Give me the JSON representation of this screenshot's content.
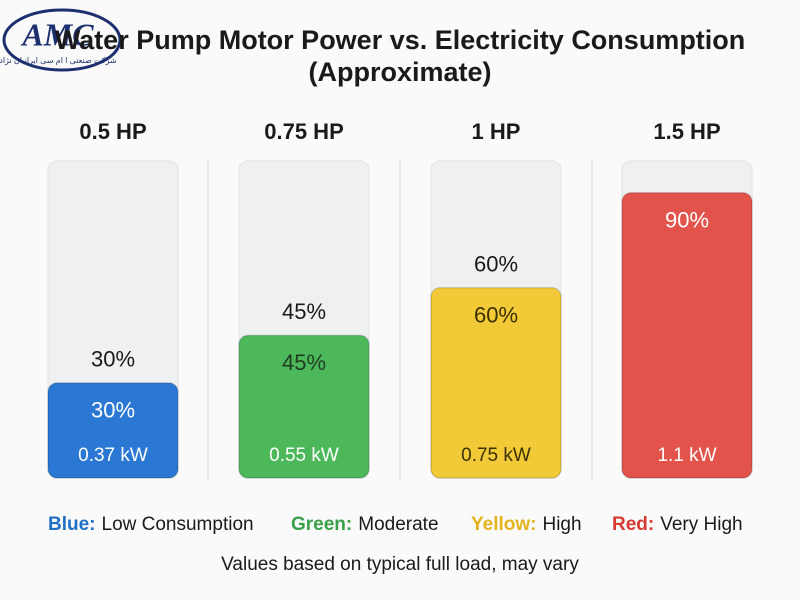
{
  "logo": {
    "name": "AMC",
    "subtitle": "شرکت صنعتی ا ام سی ایرانیان نژاد"
  },
  "chart_data": {
    "type": "bar",
    "title": "Water Pump Motor Power vs. Electricity Consumption",
    "subtitle": "(Approximate)",
    "categories": [
      "0.5 HP",
      "0.75 HP",
      "1 HP",
      "1.5 HP"
    ],
    "values": [
      30,
      45,
      60,
      90
    ],
    "value_labels": [
      "30%",
      "45%",
      "60%",
      "90%"
    ],
    "power_labels": [
      "0.37 kW",
      "0.55 kW",
      "0.75 kW",
      "1.1 kW"
    ],
    "colors": [
      "#2a78d4",
      "#4cb85a",
      "#f2c937",
      "#e2534b"
    ],
    "value_label_colors": [
      "#ffffff",
      "#1f3d22",
      "#3a3000",
      "#ffffff"
    ],
    "power_label_colors": [
      "#ffffff",
      "#ffffff",
      "#3a3000",
      "#ffffff"
    ],
    "ylim": [
      0,
      100
    ],
    "legend": [
      {
        "key": "Blue:",
        "label": "Low Consumption",
        "color": "#1f6fc4"
      },
      {
        "key": "Green:",
        "label": "Moderate",
        "color": "#3aa14a"
      },
      {
        "key": "Yellow:",
        "label": "High",
        "color": "#e3b21c"
      },
      {
        "key": "Red:",
        "label": "Very High",
        "color": "#d83a30"
      }
    ],
    "footnote": "Values based on typical full load, may vary"
  }
}
